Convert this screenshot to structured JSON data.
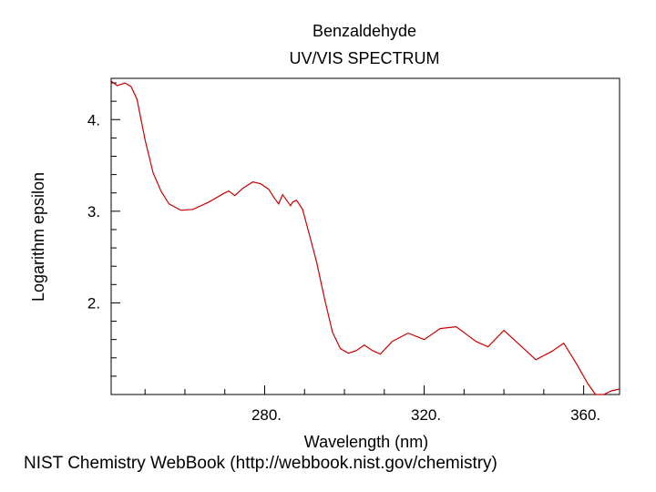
{
  "chart_data": {
    "type": "line",
    "title": "Benzaldehyde",
    "subtitle": "UV/VIS SPECTRUM",
    "xlabel": "Wavelength (nm)",
    "ylabel": "Logarithm epsilon",
    "xlim": [
      241.5,
      369
    ],
    "ylim": [
      1.0,
      4.45
    ],
    "x_ticks": [
      280,
      320,
      360
    ],
    "x_tick_labels": [
      "280.",
      "320.",
      "360."
    ],
    "y_ticks": [
      2,
      3,
      4
    ],
    "y_tick_labels": [
      "2.",
      "3.",
      "4."
    ],
    "grid": false,
    "line_color": "#cc0000",
    "series": [
      {
        "x": [
          241.5,
          243,
          245,
          246.5,
          248,
          250,
          252,
          254,
          256,
          259,
          262,
          266,
          270,
          271,
          272.5,
          274.5,
          277,
          279,
          281,
          282.5,
          283.5,
          284.5,
          285.5,
          286.5,
          287,
          288,
          289.5,
          291,
          293,
          295,
          297,
          299,
          301,
          303,
          305,
          307,
          309,
          312,
          316,
          320,
          324,
          328,
          333,
          336,
          340,
          344,
          348,
          352,
          355,
          358,
          361,
          363,
          365,
          367,
          369
        ],
        "y": [
          4.42,
          4.37,
          4.4,
          4.36,
          4.22,
          3.78,
          3.42,
          3.22,
          3.08,
          3.01,
          3.02,
          3.1,
          3.2,
          3.22,
          3.17,
          3.25,
          3.32,
          3.3,
          3.24,
          3.14,
          3.08,
          3.18,
          3.12,
          3.06,
          3.1,
          3.12,
          3.02,
          2.78,
          2.45,
          2.05,
          1.68,
          1.5,
          1.45,
          1.48,
          1.54,
          1.48,
          1.44,
          1.58,
          1.67,
          1.6,
          1.72,
          1.74,
          1.58,
          1.52,
          1.7,
          1.54,
          1.38,
          1.47,
          1.56,
          1.35,
          1.12,
          1.0,
          0.98,
          1.04,
          1.06
        ]
      }
    ]
  },
  "footer": "NIST Chemistry WebBook (http://webbook.nist.gov/chemistry)"
}
